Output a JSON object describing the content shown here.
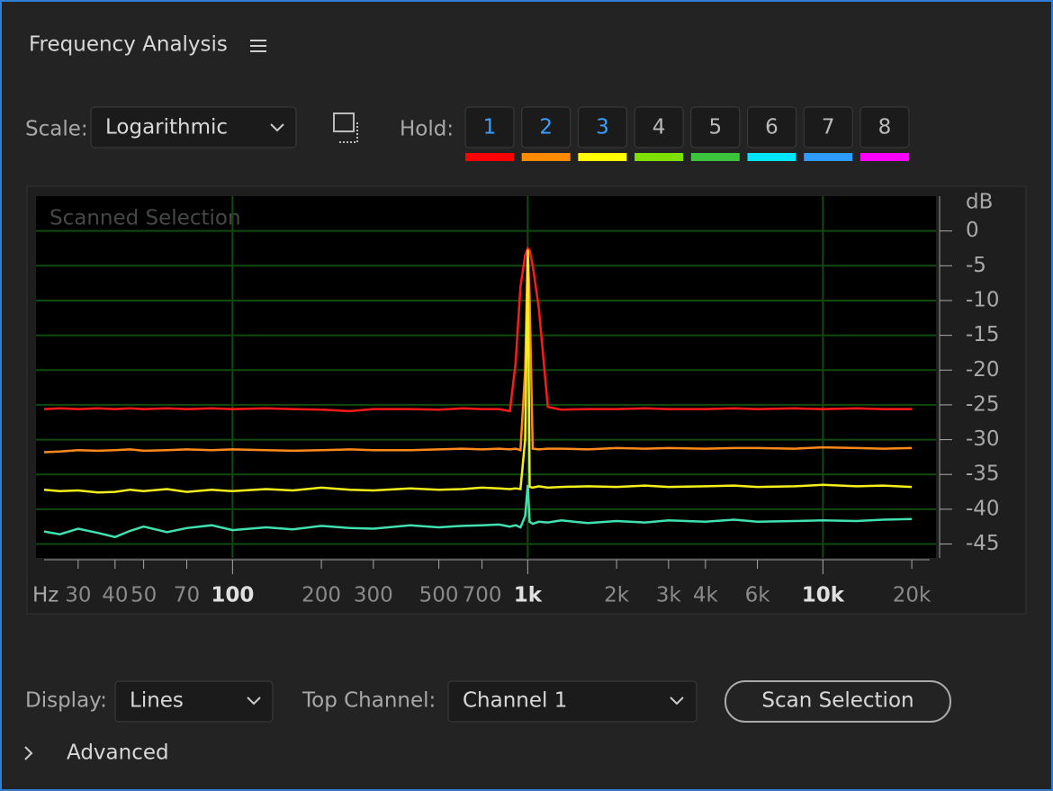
{
  "panel": {
    "title": "Frequency Analysis"
  },
  "toolbar": {
    "scale_label": "Scale:",
    "scale_value": "Logarithmic",
    "hold_label": "Hold:",
    "hold_buttons": [
      "1",
      "2",
      "3",
      "4",
      "5",
      "6",
      "7",
      "8"
    ],
    "hold_active": [
      true,
      true,
      true,
      false,
      false,
      false,
      false,
      false
    ],
    "hold_colors": [
      "#ff0000",
      "#ff8a00",
      "#ffff00",
      "#7fe000",
      "#3cc43c",
      "#00e5ff",
      "#2e9bff",
      "#ff00ff"
    ]
  },
  "chart_data": {
    "type": "line",
    "annotation": "Scanned Selection",
    "x_unit": "Hz",
    "y_unit": "dB",
    "xscale": "log",
    "xlim": [
      23,
      23000
    ],
    "ylim": [
      -47,
      5
    ],
    "xticks": [
      30,
      40,
      50,
      70,
      100,
      200,
      300,
      500,
      700,
      {
        "value": 1000,
        "label": "1k"
      },
      {
        "value": 2000,
        "label": "2k"
      },
      {
        "value": 3000,
        "label": "3k"
      },
      {
        "value": 4000,
        "label": "4k"
      },
      {
        "value": 6000,
        "label": "6k"
      },
      {
        "value": 10000,
        "label": "10k"
      },
      {
        "value": 20000,
        "label": "20k"
      }
    ],
    "x_major": [
      100,
      1000,
      10000
    ],
    "yticks": [
      0,
      -5,
      -10,
      -15,
      -20,
      -25,
      -30,
      -35,
      -40,
      -45
    ],
    "grid": true,
    "x": [
      23,
      26,
      30,
      35,
      40,
      45,
      50,
      60,
      70,
      85,
      100,
      130,
      160,
      200,
      250,
      300,
      400,
      500,
      600,
      700,
      800,
      870,
      910,
      945,
      980,
      1000,
      1015,
      1040,
      1090,
      1170,
      1300,
      1600,
      2000,
      2500,
      3000,
      4000,
      5000,
      6000,
      8000,
      10000,
      13000,
      16000,
      20000
    ],
    "series": [
      {
        "color": "#ff1a1a",
        "values": [
          -25.6,
          -25.5,
          -25.6,
          -25.5,
          -25.6,
          -25.5,
          -25.6,
          -25.5,
          -25.6,
          -25.5,
          -25.6,
          -25.5,
          -25.6,
          -25.7,
          -25.9,
          -25.6,
          -25.6,
          -25.7,
          -25.5,
          -25.6,
          -25.6,
          -25.9,
          -19,
          -8,
          -3.5,
          -2.5,
          -2.8,
          -5,
          -11,
          -25.3,
          -25.7,
          -25.6,
          -25.6,
          -25.5,
          -25.6,
          -25.6,
          -25.5,
          -25.6,
          -25.5,
          -25.6,
          -25.5,
          -25.6,
          -25.6
        ]
      },
      {
        "color": "#ff8a1a",
        "values": [
          -31.8,
          -31.7,
          -31.5,
          -31.6,
          -31.5,
          -31.4,
          -31.6,
          -31.5,
          -31.4,
          -31.5,
          -31.4,
          -31.5,
          -31.6,
          -31.5,
          -31.4,
          -31.5,
          -31.5,
          -31.4,
          -31.3,
          -31.4,
          -31.3,
          -31.4,
          -31.3,
          -31.5,
          -20,
          -2.6,
          -10,
          -31.3,
          -31.4,
          -31.3,
          -31.3,
          -31.4,
          -31.2,
          -31.3,
          -31.2,
          -31.3,
          -31.2,
          -31.2,
          -31.3,
          -31.1,
          -31.2,
          -31.3,
          -31.2
        ]
      },
      {
        "color": "#f5f01a",
        "values": [
          -37.2,
          -37.4,
          -37.3,
          -37.6,
          -37.5,
          -37.2,
          -37.4,
          -37.1,
          -37.5,
          -37.2,
          -37.4,
          -37.1,
          -37.3,
          -36.9,
          -37.2,
          -37.3,
          -37.0,
          -37.2,
          -37.1,
          -36.9,
          -37.0,
          -37.1,
          -37.0,
          -37.1,
          -30,
          -2.8,
          -36.8,
          -36.9,
          -36.7,
          -36.9,
          -36.8,
          -36.7,
          -36.8,
          -36.6,
          -36.8,
          -36.7,
          -36.6,
          -36.8,
          -36.7,
          -36.5,
          -36.7,
          -36.6,
          -36.8
        ]
      },
      {
        "color": "#40e0b0",
        "values": [
          -43.2,
          -43.6,
          -42.8,
          -43.4,
          -44.0,
          -43.1,
          -42.5,
          -43.3,
          -42.7,
          -42.3,
          -43.0,
          -42.6,
          -42.9,
          -42.4,
          -42.7,
          -42.8,
          -42.3,
          -42.6,
          -42.4,
          -42.3,
          -42.2,
          -42.5,
          -42.3,
          -42.6,
          -41.0,
          -36.5,
          -41.8,
          -42.1,
          -41.8,
          -41.9,
          -41.6,
          -42.0,
          -41.7,
          -41.9,
          -41.6,
          -41.8,
          -41.5,
          -41.8,
          -41.7,
          -41.6,
          -41.7,
          -41.5,
          -41.4
        ]
      }
    ]
  },
  "footer": {
    "display_label": "Display:",
    "display_value": "Lines",
    "channel_label": "Top Channel:",
    "channel_value": "Channel 1",
    "scan_button": "Scan Selection",
    "advanced_label": "Advanced"
  }
}
